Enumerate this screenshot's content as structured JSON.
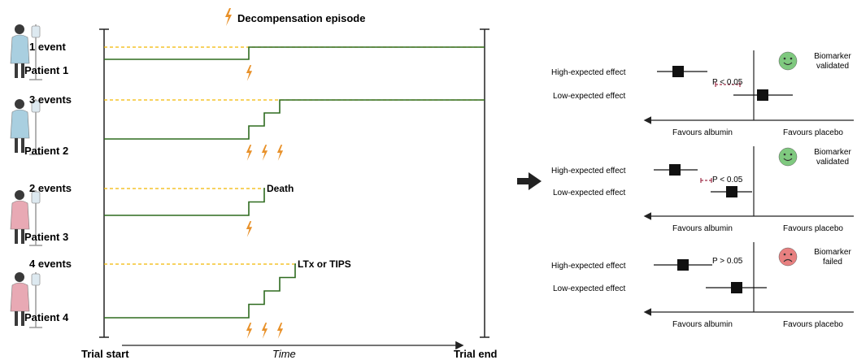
{
  "legend": {
    "bolt_label": "Decompensation episode"
  },
  "timeline": {
    "x_left_label": "Trial start",
    "x_mid_label": "Time",
    "x_right_label": "Trial end"
  },
  "patients": [
    {
      "name": "Patient 1",
      "events_label": "1 event",
      "outcome": "",
      "gown_color": "#a9cfe0",
      "events": 1
    },
    {
      "name": "Patient 2",
      "events_label": "3 events",
      "outcome": "",
      "gown_color": "#a9cfe0",
      "events": 3
    },
    {
      "name": "Patient 3",
      "events_label": "2 events",
      "outcome": "Death",
      "gown_color": "#e8a9b4",
      "events": 2
    },
    {
      "name": "Patient 4",
      "events_label": "4 events",
      "outcome": "LTx or TIPS",
      "gown_color": "#e8a9b4",
      "events": 4
    }
  ],
  "forest_panels": [
    {
      "p_label": "P < 0.05",
      "row1": "High-expected effect",
      "row2": "Low-expected effect",
      "left_label": "Favours albumin",
      "right_label": "Favours placebo",
      "result_line1": "Biomarker",
      "result_line2": "validated",
      "face": "happy",
      "face_color": "#7fc97f"
    },
    {
      "p_label": "P < 0.05",
      "row1": "High-expected effect",
      "row2": "Low-expected effect",
      "left_label": "Favours albumin",
      "right_label": "Favours placebo",
      "result_line1": "Biomarker",
      "result_line2": "validated",
      "face": "happy",
      "face_color": "#7fc97f"
    },
    {
      "p_label": "P > 0.05",
      "row1": "High-expected effect",
      "row2": "Low-expected effect",
      "left_label": "Favours albumin",
      "right_label": "Favours placebo",
      "result_line1": "Biomarker",
      "result_line2": "failed",
      "face": "sad",
      "face_color": "#e88080"
    }
  ],
  "colors": {
    "step_line": "#2e6b1f",
    "dashed_line": "#f2b600",
    "bolt": "#e8912a",
    "gap_marker": "#a0304a",
    "axis": "#222222"
  },
  "icons": [
    "patient-icon",
    "bolt-icon",
    "arrow-right-icon",
    "smiley-face-icon",
    "sad-face-icon"
  ]
}
